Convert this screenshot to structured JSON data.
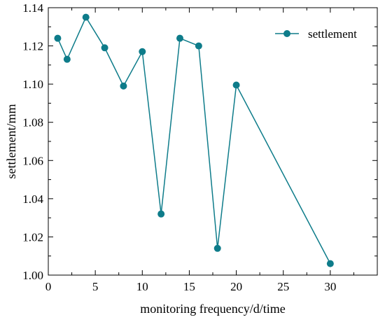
{
  "chart_data": {
    "type": "line",
    "title": "",
    "xlabel": "monitoring frequency/d/time",
    "ylabel": "settlement/mm",
    "xlim": [
      0,
      35
    ],
    "ylim": [
      1.0,
      1.14
    ],
    "xticks": [
      0,
      5,
      10,
      15,
      20,
      25,
      30
    ],
    "xtick_labels": [
      "0",
      "5",
      "10",
      "15",
      "20",
      "25",
      "30"
    ],
    "yticks": [
      1.0,
      1.02,
      1.04,
      1.06,
      1.08,
      1.1,
      1.12,
      1.14
    ],
    "ytick_labels": [
      "1.00",
      "1.02",
      "1.04",
      "1.06",
      "1.08",
      "1.10",
      "1.12",
      "1.14"
    ],
    "grid": false,
    "legend_position": "top-right",
    "series": [
      {
        "name": "settlement",
        "color": "#0e7c8a",
        "x": [
          1,
          2,
          4,
          6,
          8,
          10,
          12,
          14,
          16,
          18,
          20,
          30
        ],
        "y": [
          1.124,
          1.113,
          1.135,
          1.119,
          1.099,
          1.117,
          1.032,
          1.124,
          1.12,
          1.014,
          1.0995,
          1.006
        ]
      }
    ]
  }
}
